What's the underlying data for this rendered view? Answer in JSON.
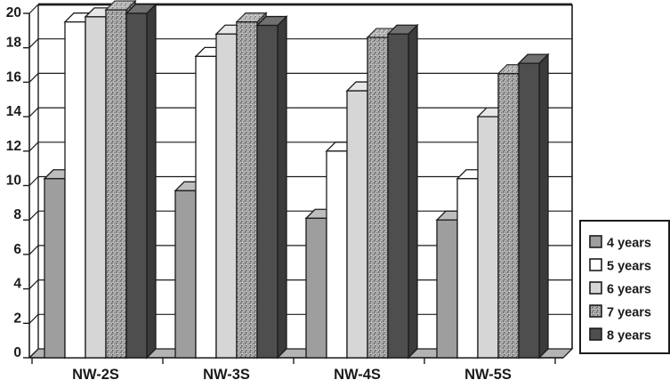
{
  "chart_data": {
    "type": "bar",
    "style": "3d-oblique-columns",
    "title": "",
    "xlabel": "",
    "ylabel": "",
    "categories": [
      "NW-2S",
      "NW-3S",
      "NW-4S",
      "NW-5S"
    ],
    "series": [
      {
        "name": "4 years",
        "values": [
          10.4,
          9.7,
          8.1,
          8.0
        ],
        "front": "#9e9e9e",
        "top": "#bdbdbd",
        "side": "#848484",
        "stipple": false
      },
      {
        "name": "5 years",
        "values": [
          19.5,
          17.5,
          12.0,
          10.4
        ],
        "front": "#ffffff",
        "top": "#ffffff",
        "side": "#fafafa",
        "stipple": false
      },
      {
        "name": "6 years",
        "values": [
          19.8,
          18.8,
          15.5,
          14.0
        ],
        "front": "#d6d6d6",
        "top": "#e7e7e7",
        "side": "#c2c2c2",
        "stipple": false
      },
      {
        "name": "7 years",
        "values": [
          20.2,
          19.5,
          18.6,
          16.5
        ],
        "front": "#b4b4b4",
        "top": "#c4c4c4",
        "side": "#9a9a9a",
        "stipple": true
      },
      {
        "name": "8 years",
        "values": [
          20.0,
          19.3,
          18.8,
          17.1
        ],
        "front": "#4e4e4e",
        "top": "#707070",
        "side": "#3b3b3b",
        "stipple": false
      }
    ],
    "ylim": [
      0,
      20
    ],
    "ytick_step": 2,
    "yticks": [
      0,
      2,
      4,
      6,
      8,
      10,
      12,
      14,
      16,
      18,
      20
    ],
    "grid": true,
    "legend_position": "right",
    "legend_entries": [
      "4 years",
      "5 years",
      "6 years",
      "7 years",
      "8 years"
    ],
    "colors": {
      "outline": "#1c1c1c",
      "floor": "#b3b3b3",
      "wall": "#ffffff",
      "stipple_base": "#b4b4b4",
      "stipple_dots": [
        "#646464",
        "#7a7a7a",
        "#555555",
        "#8f8f8f",
        "#e2e2e2"
      ]
    }
  }
}
